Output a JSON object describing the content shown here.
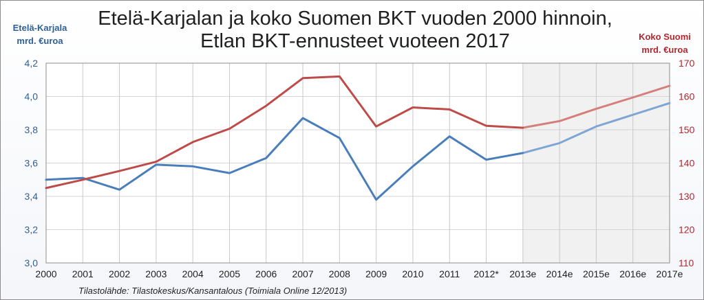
{
  "title_line1": "Etelä-Karjalan ja koko Suomen BKT vuoden 2000 hinnoin,",
  "title_line2": "Etlan BKT-ennusteet vuoteen 2017",
  "left_axis_title_line1": "Etelä-Karjala",
  "left_axis_title_line2": "mrd. €uroa",
  "right_axis_title_line1": "Koko Suomi",
  "right_axis_title_line2": "mrd. €uroa",
  "source": "Tilastolähde: Tilastokeskus/Kansantalous (Toimiala Online 12/2013)",
  "chart_data": {
    "type": "line",
    "categories": [
      "2000",
      "2001",
      "2002",
      "2003",
      "2004",
      "2005",
      "2006",
      "2007",
      "2008",
      "2009",
      "2010",
      "2011",
      "2012*",
      "2013e",
      "2014e",
      "2015e",
      "2016e",
      "2017e"
    ],
    "forecast_start_index": 13,
    "grid": true,
    "series": [
      {
        "axis": "left",
        "color": "#4a7ebb",
        "forecast_color": "#7fa5d3",
        "values": [
          3.5,
          3.51,
          3.44,
          3.59,
          3.58,
          3.54,
          3.63,
          3.87,
          3.75,
          3.38,
          3.58,
          3.76,
          3.62,
          3.66,
          3.72,
          3.82,
          3.89,
          3.96
        ]
      },
      {
        "axis": "right",
        "color": "#be4b48",
        "forecast_color": "#d47f7c",
        "values": [
          132.5,
          135.0,
          137.6,
          140.4,
          146.3,
          150.3,
          157.2,
          165.5,
          166.0,
          151.0,
          156.7,
          156.1,
          151.2,
          150.6,
          152.6,
          156.3,
          159.7,
          163.2
        ]
      }
    ],
    "y_left": {
      "min": 3.0,
      "max": 4.2,
      "step": 0.2,
      "ticks": [
        "3,0",
        "3,2",
        "3,4",
        "3,6",
        "3,8",
        "4,0",
        "4,2"
      ],
      "tick_color": "#2e5f96"
    },
    "y_right": {
      "min": 110,
      "max": 170,
      "step": 10,
      "ticks": [
        "110",
        "120",
        "130",
        "140",
        "150",
        "160",
        "170"
      ],
      "tick_color": "#b3262e"
    }
  }
}
